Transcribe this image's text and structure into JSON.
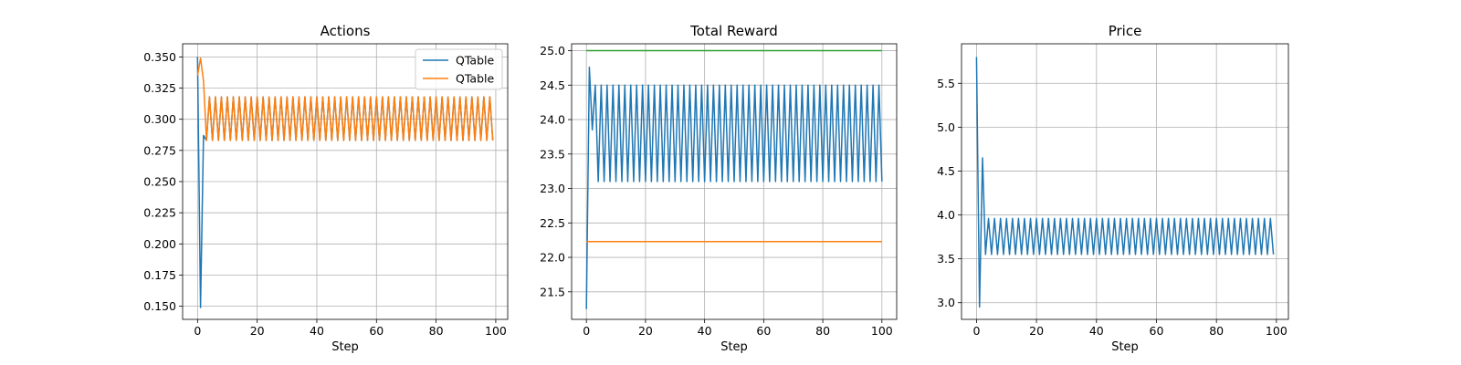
{
  "chart_data": [
    {
      "type": "line",
      "title": "Actions",
      "xlabel": "Step",
      "ylabel": "",
      "xlim": [
        -5,
        104
      ],
      "ylim": [
        0.1395,
        0.3605
      ],
      "xticks": [
        0,
        20,
        40,
        60,
        80,
        100
      ],
      "yticks": [
        0.15,
        0.175,
        0.2,
        0.225,
        0.25,
        0.275,
        0.3,
        0.325,
        0.35
      ],
      "ytick_format": 3,
      "grid": true,
      "legend": {
        "position": "top-right",
        "entries": [
          "QTable",
          "QTable"
        ]
      },
      "series": [
        {
          "name": "QTable",
          "color": "#1f77b4",
          "steps": 100,
          "points": [
            [
              0,
              0.35
            ],
            [
              1,
              0.149
            ],
            [
              2,
              0.287
            ],
            [
              3,
              0.283
            ]
          ],
          "pattern": {
            "from": 3,
            "to": 99,
            "values": [
              0.283,
              0.318
            ]
          }
        },
        {
          "name": "QTable",
          "color": "#ff7f0e",
          "steps": 100,
          "points": [
            [
              0,
              0.335
            ],
            [
              1,
              0.349
            ],
            [
              2,
              0.331
            ],
            [
              3,
              0.283
            ]
          ],
          "pattern": {
            "from": 3,
            "to": 99,
            "values": [
              0.283,
              0.318
            ]
          }
        }
      ]
    },
    {
      "type": "line",
      "title": "Total Reward",
      "xlabel": "Step",
      "ylabel": "",
      "xlim": [
        -5,
        105
      ],
      "ylim": [
        21.1,
        25.1
      ],
      "xticks": [
        0,
        20,
        40,
        60,
        80,
        100
      ],
      "yticks": [
        21.5,
        22.0,
        22.5,
        23.0,
        23.5,
        24.0,
        24.5,
        25.0
      ],
      "ytick_format": 1,
      "grid": true,
      "series": [
        {
          "color": "#1f77b4",
          "points": [
            [
              0,
              21.25
            ],
            [
              1,
              24.76
            ],
            [
              2,
              23.85
            ],
            [
              3,
              24.5
            ],
            [
              4,
              23.1
            ]
          ],
          "pattern": {
            "from": 4,
            "to": 100,
            "values": [
              23.1,
              24.5
            ]
          }
        },
        {
          "color": "#ff7f0e",
          "points": [
            [
              0,
              22.23
            ],
            [
              100,
              22.23
            ]
          ]
        },
        {
          "color": "#2ca02c",
          "points": [
            [
              0,
              25.0
            ],
            [
              100,
              25.0
            ]
          ]
        }
      ]
    },
    {
      "type": "line",
      "title": "Price",
      "xlabel": "Step",
      "ylabel": "",
      "xlim": [
        -5,
        104
      ],
      "ylim": [
        2.81,
        5.95
      ],
      "xticks": [
        0,
        20,
        40,
        60,
        80,
        100
      ],
      "yticks": [
        3.0,
        3.5,
        4.0,
        4.5,
        5.0,
        5.5
      ],
      "ytick_format": 1,
      "grid": true,
      "series": [
        {
          "color": "#1f77b4",
          "points": [
            [
              0,
              5.8
            ],
            [
              1,
              2.95
            ],
            [
              2,
              4.65
            ],
            [
              3,
              3.55
            ]
          ],
          "pattern": {
            "from": 3,
            "to": 99,
            "values": [
              3.55,
              3.96
            ]
          }
        }
      ]
    }
  ]
}
